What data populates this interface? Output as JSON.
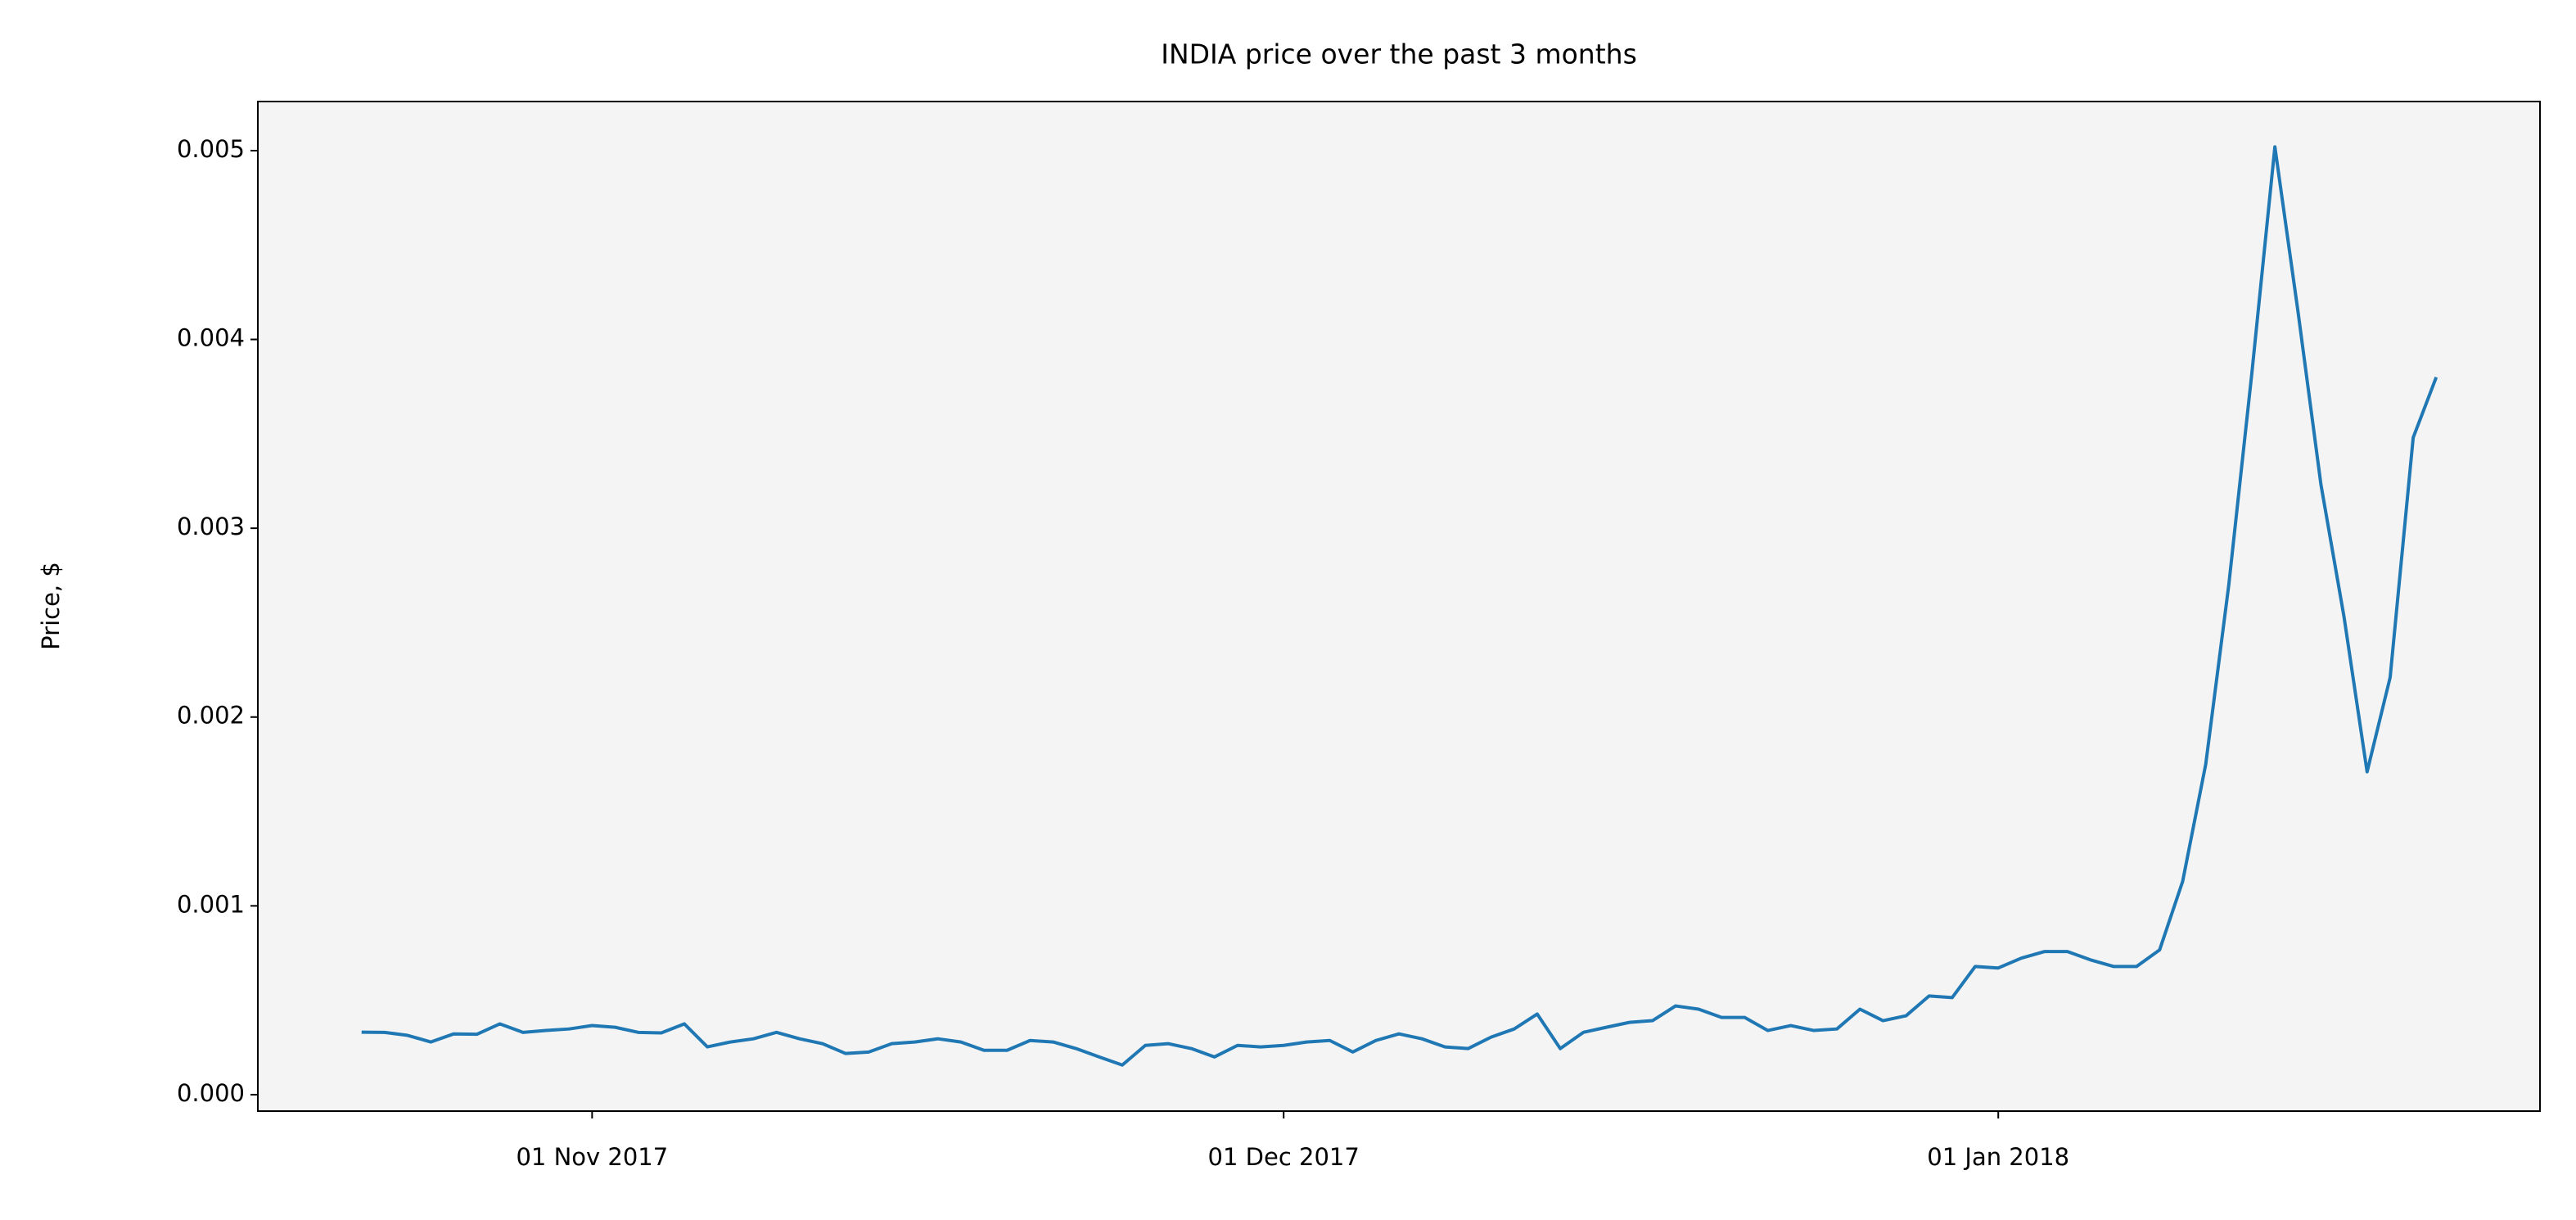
{
  "chart_data": {
    "type": "line",
    "title": "INDIA price over the past 3 months",
    "ylabel": "Price, $",
    "x": [
      "2017-10-22",
      "2017-10-23",
      "2017-10-24",
      "2017-10-25",
      "2017-10-26",
      "2017-10-27",
      "2017-10-28",
      "2017-10-29",
      "2017-10-30",
      "2017-10-31",
      "2017-11-01",
      "2017-11-02",
      "2017-11-03",
      "2017-11-04",
      "2017-11-05",
      "2017-11-06",
      "2017-11-07",
      "2017-11-08",
      "2017-11-09",
      "2017-11-10",
      "2017-11-11",
      "2017-11-12",
      "2017-11-13",
      "2017-11-14",
      "2017-11-15",
      "2017-11-16",
      "2017-11-17",
      "2017-11-18",
      "2017-11-19",
      "2017-11-20",
      "2017-11-21",
      "2017-11-22",
      "2017-11-23",
      "2017-11-24",
      "2017-11-25",
      "2017-11-26",
      "2017-11-27",
      "2017-11-28",
      "2017-11-29",
      "2017-11-30",
      "2017-12-01",
      "2017-12-02",
      "2017-12-03",
      "2017-12-04",
      "2017-12-05",
      "2017-12-06",
      "2017-12-07",
      "2017-12-08",
      "2017-12-09",
      "2017-12-10",
      "2017-12-11",
      "2017-12-12",
      "2017-12-13",
      "2017-12-14",
      "2017-12-15",
      "2017-12-16",
      "2017-12-17",
      "2017-12-18",
      "2017-12-19",
      "2017-12-20",
      "2017-12-21",
      "2017-12-22",
      "2017-12-23",
      "2017-12-24",
      "2017-12-25",
      "2017-12-26",
      "2017-12-27",
      "2017-12-28",
      "2017-12-29",
      "2017-12-30",
      "2017-12-31",
      "2018-01-01",
      "2018-01-02",
      "2018-01-03",
      "2018-01-04",
      "2018-01-05",
      "2018-01-06",
      "2018-01-07",
      "2018-01-08",
      "2018-01-09",
      "2018-01-10",
      "2018-01-11",
      "2018-01-12",
      "2018-01-13",
      "2018-01-14",
      "2018-01-15",
      "2018-01-16",
      "2018-01-17",
      "2018-01-18",
      "2018-01-19",
      "2018-01-20"
    ],
    "series": [
      {
        "name": "INDIA",
        "color": "#1f77b4",
        "values": [
          0.000331,
          0.00033,
          0.000314,
          0.000279,
          0.000322,
          0.00032,
          0.000375,
          0.00033,
          0.00034,
          0.000348,
          0.000366,
          0.000357,
          0.00033,
          0.000327,
          0.000375,
          0.000253,
          0.000279,
          0.000296,
          0.00033,
          0.000296,
          0.00027,
          0.000218,
          0.000226,
          0.00027,
          0.000279,
          0.000296,
          0.000279,
          0.000235,
          0.000235,
          0.000287,
          0.000279,
          0.000244,
          0.0002,
          0.000157,
          0.000261,
          0.00027,
          0.000244,
          0.0002,
          0.000261,
          0.000253,
          0.000261,
          0.000279,
          0.000287,
          0.000226,
          0.000287,
          0.000322,
          0.000296,
          0.000253,
          0.000244,
          0.000305,
          0.000348,
          0.000427,
          0.000244,
          0.00033,
          0.000357,
          0.000383,
          0.000392,
          0.00047,
          0.000453,
          0.000409,
          0.000409,
          0.00034,
          0.000366,
          0.00034,
          0.000348,
          0.000453,
          0.000392,
          0.000418,
          0.000523,
          0.000514,
          0.000679,
          0.000671,
          0.000723,
          0.000758,
          0.000758,
          0.000714,
          0.000679,
          0.000679,
          0.000767,
          0.00113,
          0.00175,
          0.0027,
          0.00382,
          0.00502,
          0.00415,
          0.00323,
          0.00253,
          0.00171,
          0.00221,
          0.00348,
          0.0038
        ]
      }
    ],
    "xlim": [
      "2017-10-17T12:00",
      "2018-01-24T12:00"
    ],
    "xticks": [
      {
        "value": "2017-11-01",
        "label": "01 Nov 2017"
      },
      {
        "value": "2017-12-01",
        "label": "01 Dec 2017"
      },
      {
        "value": "2018-01-01",
        "label": "01 Jan 2018"
      }
    ],
    "ylim": [
      -8.7e-05,
      0.00526
    ],
    "yticks": [
      {
        "value": 0,
        "label": "0.000"
      },
      0.001,
      0.002,
      0.003,
      0.004,
      0.005
    ],
    "background": "#f4f4f4"
  }
}
